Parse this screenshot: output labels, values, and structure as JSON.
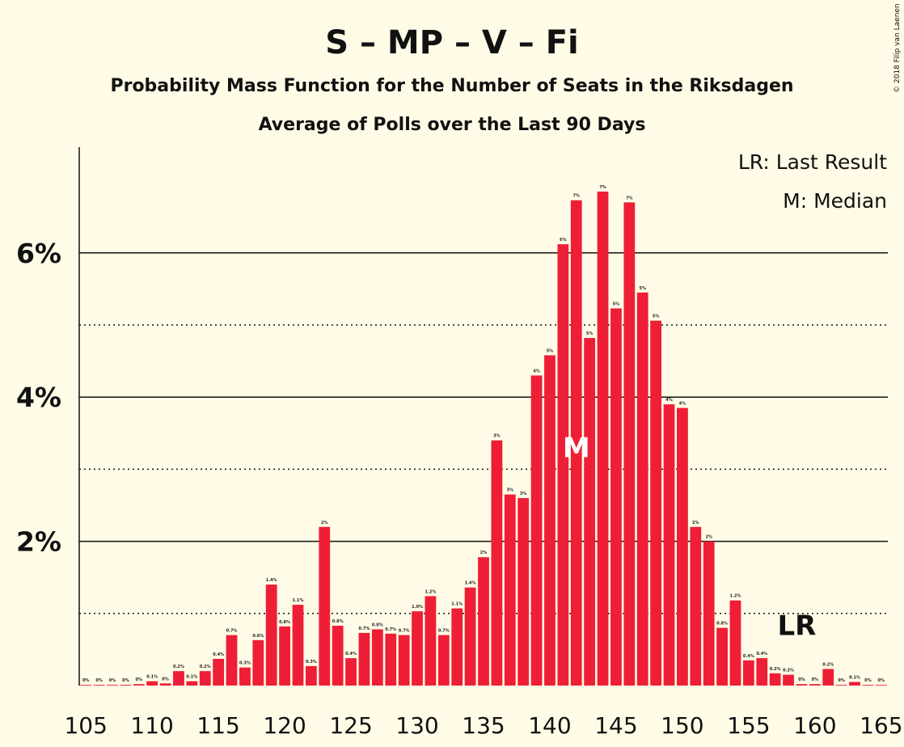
{
  "chart_data": {
    "type": "bar",
    "title": "S – MP – V – Fi",
    "subtitle": "Probability Mass Function for the Number of Seats in the Riksdagen",
    "subtitle2": "Average of Polls over the Last 90 Days",
    "copyright": "© 2018 Filip van Laenen",
    "legend": [
      "LR: Last Result",
      "M: Median"
    ],
    "median_marker": "M",
    "median_seat": 142,
    "last_result_marker": "LR",
    "last_result_seat": 159,
    "xlim": [
      105,
      165
    ],
    "ylim": [
      0,
      7.4
    ],
    "x_ticks": [
      105,
      110,
      115,
      120,
      125,
      130,
      135,
      140,
      145,
      150,
      155,
      160,
      165
    ],
    "y_ticks": [
      {
        "value": 2,
        "label": "2%"
      },
      {
        "value": 4,
        "label": "4%"
      },
      {
        "value": 6,
        "label": "6%"
      }
    ],
    "minor_gridlines": [
      1,
      3,
      5
    ],
    "bar_color": "#EE1E36",
    "seats": [
      105,
      106,
      107,
      108,
      109,
      110,
      111,
      112,
      113,
      114,
      115,
      116,
      117,
      118,
      119,
      120,
      121,
      122,
      123,
      124,
      125,
      126,
      127,
      128,
      129,
      130,
      131,
      132,
      133,
      134,
      135,
      136,
      137,
      138,
      139,
      140,
      141,
      142,
      143,
      144,
      145,
      146,
      147,
      148,
      149,
      150,
      151,
      152,
      153,
      154,
      155,
      156,
      157,
      158,
      159,
      160,
      161,
      162,
      163,
      164,
      165
    ],
    "values": [
      0.01,
      0.01,
      0.01,
      0.01,
      0.02,
      0.06,
      0.03,
      0.2,
      0.06,
      0.2,
      0.37,
      0.7,
      0.25,
      0.63,
      1.4,
      0.82,
      1.12,
      0.27,
      2.2,
      0.83,
      0.38,
      0.73,
      0.78,
      0.72,
      0.7,
      1.03,
      1.24,
      0.7,
      1.07,
      1.36,
      1.78,
      3.4,
      2.65,
      2.6,
      4.3,
      4.58,
      6.12,
      6.73,
      4.82,
      6.85,
      5.23,
      6.7,
      5.45,
      5.06,
      3.9,
      3.85,
      2.2,
      2.0,
      0.8,
      1.18,
      0.35,
      0.38,
      0.17,
      0.15,
      0.02,
      0.02,
      0.23,
      0.01,
      0.05,
      0.01,
      0.01
    ],
    "labels": [
      "0%",
      "0%",
      "0%",
      "0%",
      "0%",
      "0.1%",
      "0%",
      "0.2%",
      "0.1%",
      "0.2%",
      "0.4%",
      "0.7%",
      "0.3%",
      "0.6%",
      "1.4%",
      "0.8%",
      "1.1%",
      "0.3%",
      "2%",
      "0.8%",
      "0.4%",
      "0.7%",
      "0.8%",
      "0.7%",
      "0.7%",
      "1.0%",
      "1.2%",
      "0.7%",
      "1.1%",
      "1.4%",
      "2%",
      "3%",
      "3%",
      "3%",
      "4%",
      "5%",
      "6%",
      "7%",
      "5%",
      "7%",
      "5%",
      "7%",
      "5%",
      "5%",
      "4%",
      "4%",
      "2%",
      "2%",
      "0.8%",
      "1.2%",
      "0.4%",
      "0.4%",
      "0.2%",
      "0.2%",
      "0%",
      "0%",
      "0.2%",
      "0%",
      "0.1%",
      "0%",
      "0%"
    ]
  }
}
